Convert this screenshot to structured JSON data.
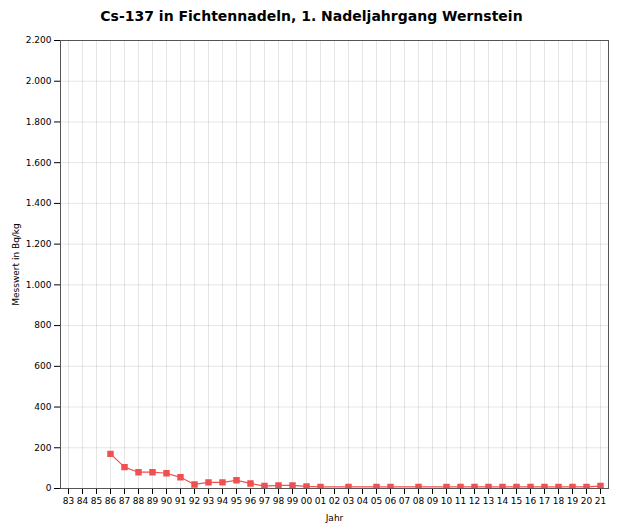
{
  "chart_data": {
    "type": "line",
    "title": "Cs-137 in Fichtennadeln, 1. Nadeljahrgang Wernstein",
    "xlabel": "Jahr",
    "ylabel": "Messwert in Bq/kg",
    "categories": [
      "83",
      "84",
      "85",
      "86",
      "87",
      "88",
      "89",
      "90",
      "91",
      "92",
      "93",
      "94",
      "95",
      "96",
      "97",
      "98",
      "99",
      "00",
      "01",
      "02",
      "03",
      "04",
      "05",
      "06",
      "07",
      "08",
      "09",
      "10",
      "11",
      "12",
      "13",
      "14",
      "15",
      "16",
      "17",
      "18",
      "19",
      "20",
      "21"
    ],
    "values": [
      null,
      null,
      null,
      170,
      105,
      80,
      80,
      75,
      55,
      20,
      30,
      30,
      40,
      25,
      12,
      15,
      15,
      10,
      8,
      null,
      8,
      null,
      8,
      8,
      null,
      8,
      null,
      8,
      8,
      8,
      8,
      8,
      8,
      8,
      8,
      8,
      8,
      8,
      12
    ],
    "color": "#f05050",
    "marker": "square",
    "ylim": [
      0,
      2200
    ],
    "yticks": [
      0,
      200,
      400,
      600,
      800,
      {
        "value": 1000,
        "label": "1.000"
      },
      {
        "value": 1200,
        "label": "1.200"
      },
      {
        "value": 1400,
        "label": "1.400"
      },
      {
        "value": 1600,
        "label": "1.600"
      },
      {
        "value": 1800,
        "label": "1.800"
      },
      {
        "value": 2000,
        "label": "2.000"
      },
      {
        "value": 2200,
        "label": "2.200"
      }
    ],
    "grid": true
  }
}
